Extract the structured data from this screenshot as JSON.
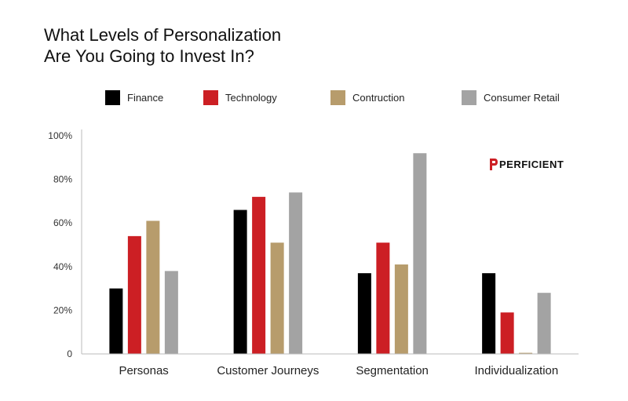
{
  "title_lines": [
    "What Levels of Personalization",
    "Are You Going to Invest In?"
  ],
  "brand": {
    "logo_text": "PERFICIENT",
    "accent": "#cc1f24"
  },
  "chart_data": {
    "type": "bar",
    "title": "What Levels of Personalization Are You Going to Invest In?",
    "categories": [
      "Personas",
      "Customer Journeys",
      "Segmentation",
      "Individualization"
    ],
    "series": [
      {
        "name": "Finance",
        "color": "#000000",
        "values": [
          30,
          66,
          37,
          37
        ]
      },
      {
        "name": "Technology",
        "color": "#cc1f24",
        "values": [
          54,
          72,
          51,
          19
        ]
      },
      {
        "name": "Contruction",
        "color": "#b79c6c",
        "values": [
          61,
          51,
          41,
          0.5
        ]
      },
      {
        "name": "Consumer Retail",
        "color": "#a3a3a3",
        "values": [
          38,
          74,
          92,
          28
        ]
      }
    ],
    "ylim": [
      0,
      100
    ],
    "yticks": [
      0,
      20,
      40,
      60,
      80,
      100
    ],
    "ytick_labels": [
      "0",
      "20%",
      "40%",
      "60%",
      "80%",
      "100%"
    ],
    "grid": false,
    "legend_position": "top"
  }
}
